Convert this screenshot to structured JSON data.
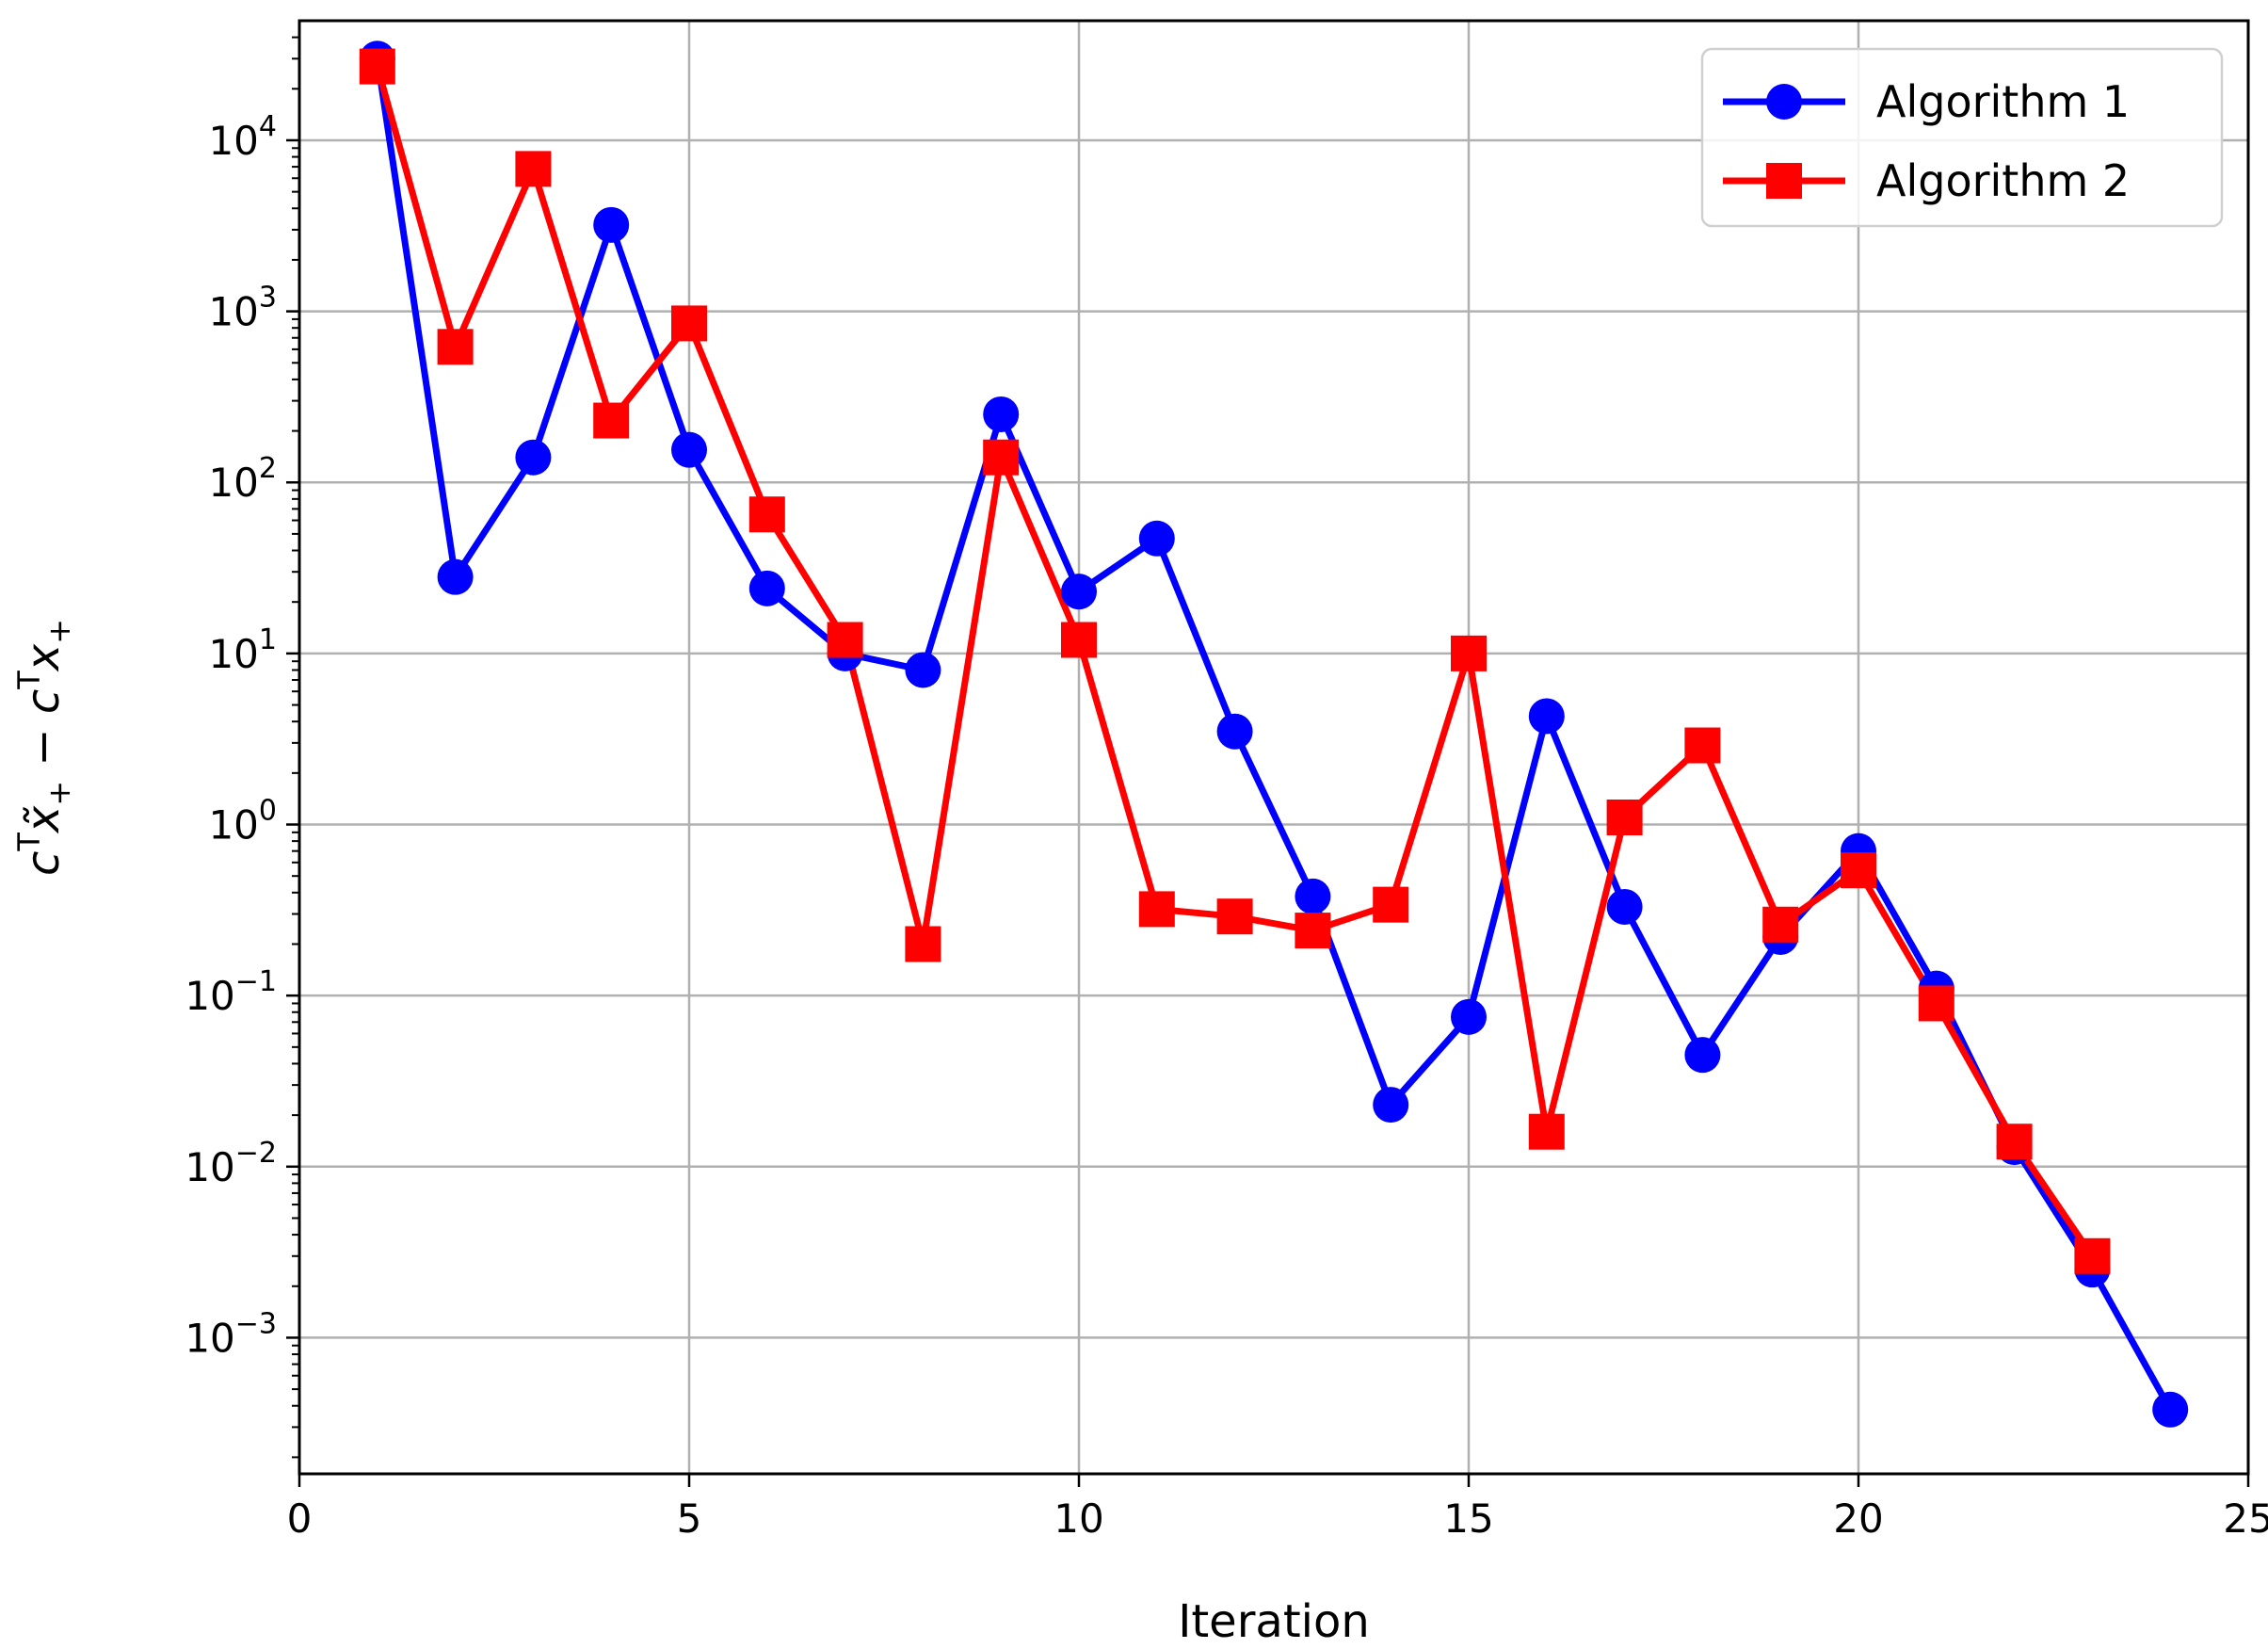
{
  "chart_data": {
    "type": "line",
    "title": "",
    "xlabel": "Iteration",
    "ylabel": "c^T x̃_+ − c^T x_+",
    "yscale": "log",
    "xlim": [
      0,
      25
    ],
    "ylim": [
      0.00016,
      50000
    ],
    "xticks": [
      0,
      5,
      10,
      15,
      20,
      25
    ],
    "yticks": [
      {
        "value": 0.001,
        "base": "10",
        "exp": "−3"
      },
      {
        "value": 0.01,
        "base": "10",
        "exp": "−2"
      },
      {
        "value": 0.1,
        "base": "10",
        "exp": "−1"
      },
      {
        "value": 1,
        "base": "10",
        "exp": "0"
      },
      {
        "value": 10,
        "base": "10",
        "exp": "1"
      },
      {
        "value": 100,
        "base": "10",
        "exp": "2"
      },
      {
        "value": 1000,
        "base": "10",
        "exp": "3"
      },
      {
        "value": 10000,
        "base": "10",
        "exp": "4"
      }
    ],
    "grid": true,
    "legend": {
      "position": "top-right"
    },
    "series": [
      {
        "name": "Algorithm 1",
        "color": "#0000ff",
        "marker": "circle",
        "x": [
          1,
          2,
          3,
          4,
          5,
          6,
          7,
          8,
          9,
          10,
          11,
          12,
          13,
          14,
          15,
          16,
          17,
          18,
          19,
          20,
          21,
          22,
          23,
          24
        ],
        "y": [
          30000,
          28,
          140,
          3200,
          155,
          24,
          10,
          8,
          250,
          23,
          47,
          3.5,
          0.38,
          0.023,
          0.075,
          4.3,
          0.33,
          0.045,
          0.22,
          0.7,
          0.11,
          0.013,
          0.0025,
          0.00038
        ]
      },
      {
        "name": "Algorithm 2",
        "color": "#ff0000",
        "marker": "square",
        "x": [
          1,
          2,
          3,
          4,
          5,
          6,
          7,
          8,
          9,
          10,
          11,
          12,
          13,
          14,
          15,
          16,
          17,
          18,
          19,
          20,
          21,
          22,
          23
        ],
        "y": [
          27000,
          620,
          6800,
          230,
          850,
          65,
          12,
          0.2,
          140,
          12,
          0.32,
          0.29,
          0.24,
          0.34,
          10,
          0.016,
          1.1,
          2.9,
          0.26,
          0.54,
          0.09,
          0.014,
          0.003
        ]
      }
    ]
  }
}
